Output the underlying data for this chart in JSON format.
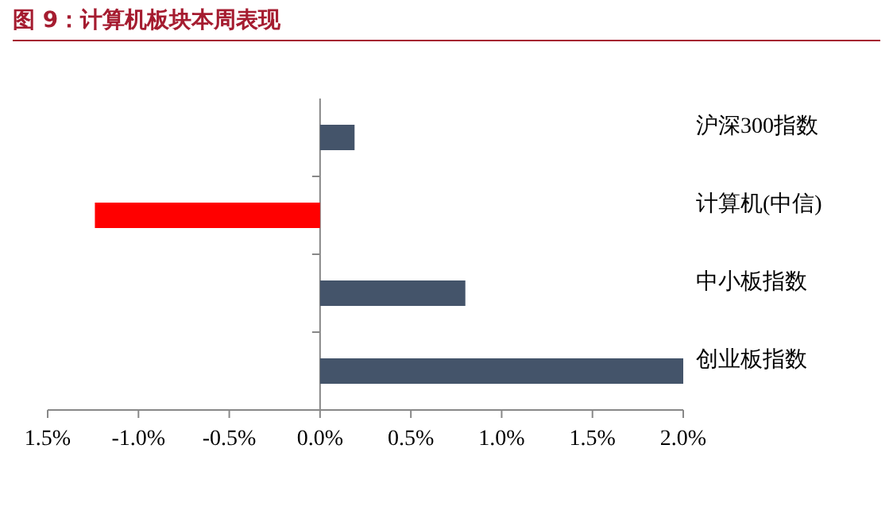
{
  "chart_data": {
    "type": "bar",
    "orientation": "horizontal",
    "title": "图 9：计算机板块本周表现",
    "categories": [
      "沪深300指数",
      "计算机(中信)",
      "中小板指数",
      "创业板指数"
    ],
    "values": [
      0.19,
      -1.24,
      0.8,
      2.0
    ],
    "colors": [
      "#44546a",
      "#ff0000",
      "#44546a",
      "#44546a"
    ],
    "xlim": [
      -1.5,
      2.0
    ],
    "xticks": [
      {
        "value": -1.5,
        "label": "1.5%"
      },
      {
        "value": -1.0,
        "label": "-1.0%"
      },
      {
        "value": -0.5,
        "label": "-0.5%"
      },
      {
        "value": 0,
        "label": "0.0%"
      },
      {
        "value": 0.5,
        "label": "0.5%"
      },
      {
        "value": 1.0,
        "label": "1.0%"
      },
      {
        "value": 1.5,
        "label": "1.5%"
      },
      {
        "value": 2.0,
        "label": "2.0%"
      }
    ],
    "xlabel": null
  }
}
